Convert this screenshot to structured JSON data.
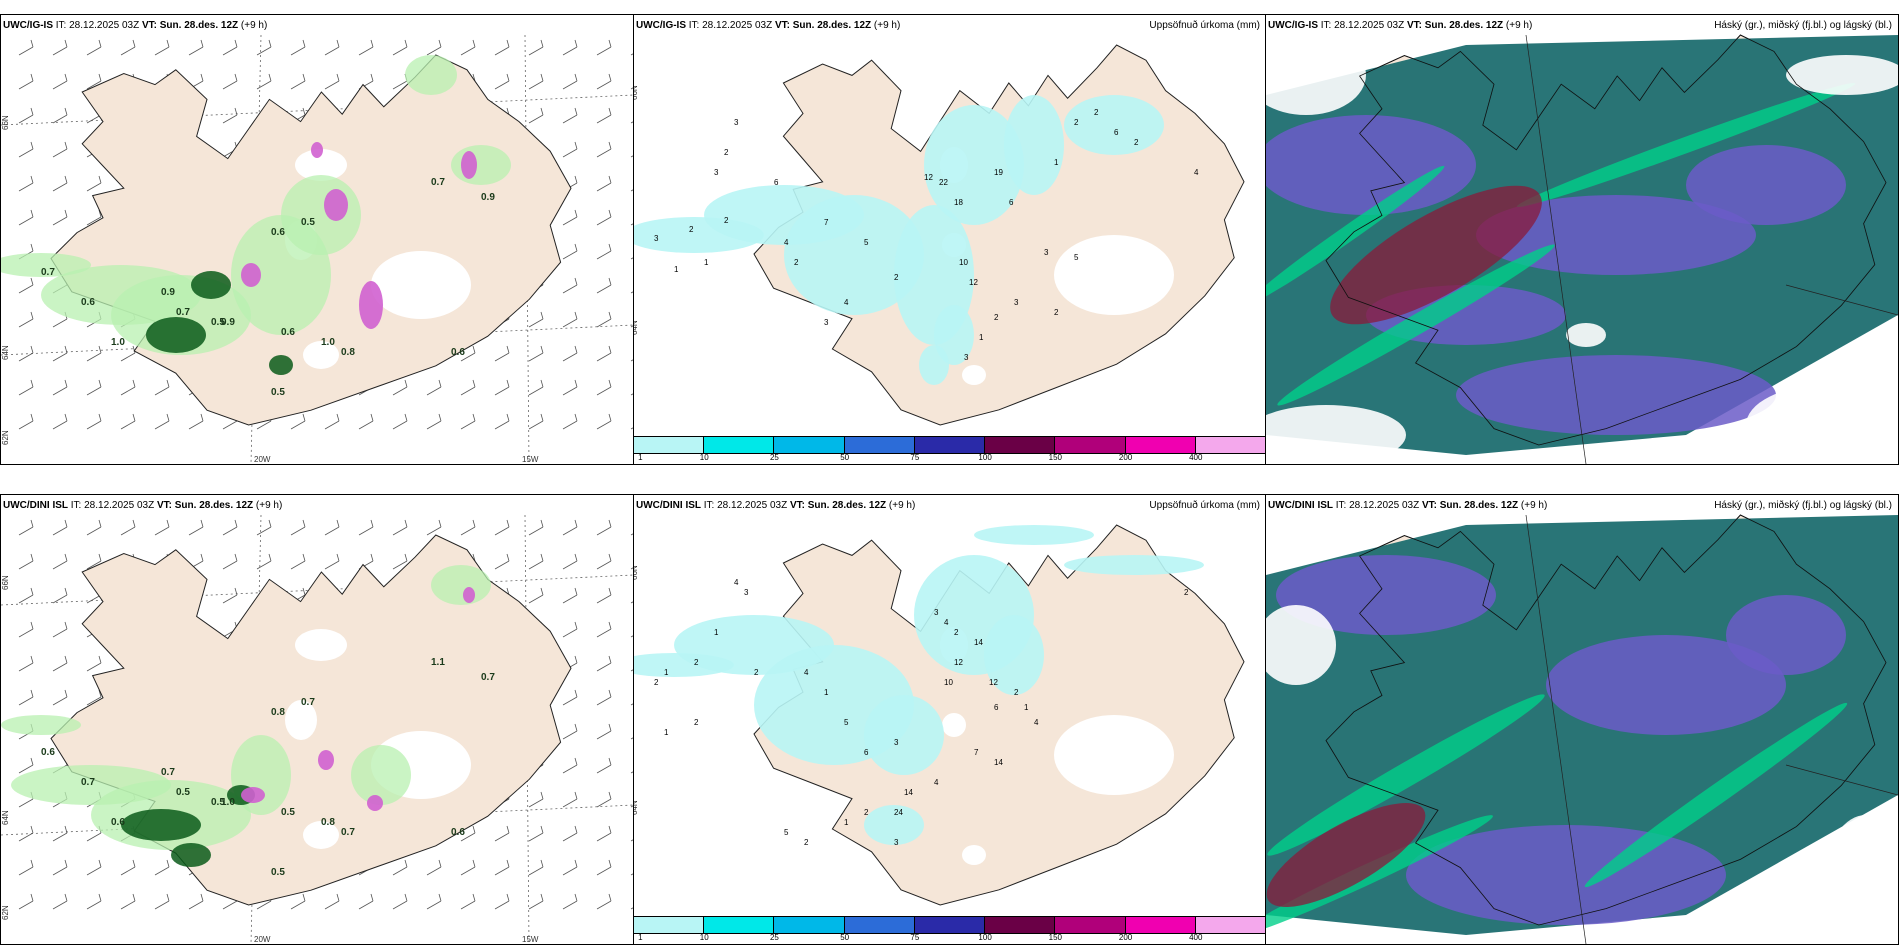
{
  "rows": [
    {
      "model": "UWC/IG-IS",
      "it_label": "IT:",
      "it_value": "28.12.2025 03Z",
      "vt_label": "VT:",
      "vt_value": "Sun. 28.des. 12Z",
      "lead": "(+9 h)",
      "precip_title": "Uppsöfnuð úrkoma (mm)",
      "cloud_title": "Háský (gr.), miðský (fj.bl.) og lágský (bl.)",
      "lon_labels": [
        "20W",
        "15W"
      ],
      "lat_labels": [
        "66N",
        "64N",
        "62N"
      ],
      "wind_labels": [
        "0.7",
        "0.6",
        "1.0",
        "0.9",
        "0.7",
        "0.5",
        "0.6",
        "0.5",
        "0.7",
        "0.9",
        "0.6",
        "1.0",
        "0.8",
        "0.5",
        "0.9",
        "0.6"
      ],
      "precip_labels": [
        "3",
        "2",
        "2",
        "1",
        "1",
        "3",
        "2",
        "3",
        "6",
        "4",
        "2",
        "7",
        "12",
        "22",
        "18",
        "19",
        "6",
        "10",
        "12",
        "3",
        "5",
        "3",
        "2",
        "2",
        "1",
        "3",
        "2",
        "5",
        "4",
        "3",
        "1",
        "2",
        "2",
        "6",
        "2",
        "4"
      ]
    },
    {
      "model": "UWC/DINI ISL",
      "it_label": "IT:",
      "it_value": "28.12.2025 03Z",
      "vt_label": "VT:",
      "vt_value": "Sun. 28.des. 12Z",
      "lead": "(+9 h)",
      "precip_title": "Uppsöfnuð úrkoma (mm)",
      "cloud_title": "Háský (gr.), miðský (fj.bl.) og lágský (bl.)",
      "lon_labels": [
        "20W",
        "15W"
      ],
      "lat_labels": [
        "66N",
        "64N",
        "62N"
      ],
      "wind_labels": [
        "0.6",
        "0.7",
        "0.6",
        "0.7",
        "0.5",
        "0.5",
        "0.8",
        "0.7",
        "1.1",
        "0.7",
        "0.5",
        "0.8",
        "0.7",
        "0.5",
        "1.0",
        "0.6"
      ],
      "precip_labels": [
        "2",
        "1",
        "2",
        "1",
        "2",
        "1",
        "4",
        "3",
        "2",
        "4",
        "1",
        "5",
        "6",
        "3",
        "24",
        "14",
        "4",
        "10",
        "12",
        "14",
        "12",
        "6",
        "3",
        "4",
        "2",
        "7",
        "14",
        "2",
        "1",
        "4",
        "5",
        "2",
        "1",
        "2",
        "3",
        "2"
      ]
    }
  ],
  "colorbar": {
    "labels": [
      "1",
      "10",
      "25",
      "50",
      "75",
      "100",
      "150",
      "200",
      "400"
    ],
    "colors": [
      "#b8f5f5",
      "#00e8e8",
      "#00b8e8",
      "#2c6cd8",
      "#2a2aa8",
      "#6a0046",
      "#b0007a",
      "#f000b0",
      "#f4a8ec"
    ]
  },
  "colors": {
    "land": "#f5e6d8",
    "coast": "#222222",
    "cloud_high": "#1e6e70",
    "cloud_mid": "#6b5cc8",
    "cloud_low": "#00d08a",
    "heavy_red": "#8a1a3a",
    "light_green": "#b8f0b0",
    "dark_green": "#0b5a1a",
    "magenta": "#d060d0",
    "precip_light": "#b8f5f5"
  }
}
